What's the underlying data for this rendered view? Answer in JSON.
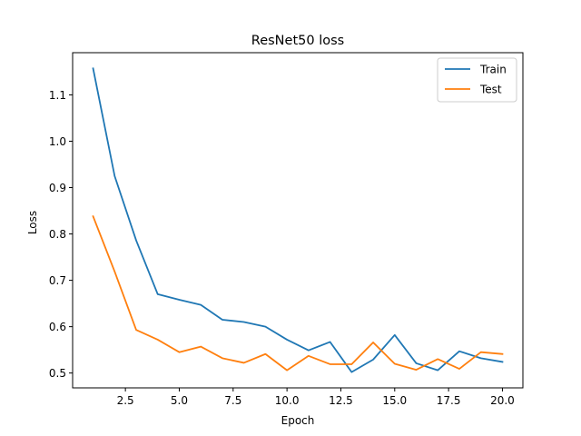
{
  "chart_data": {
    "type": "line",
    "title": "ResNet50 loss",
    "xlabel": "Epoch",
    "ylabel": "Loss",
    "xlim": [
      0.05,
      20.95
    ],
    "ylim": [
      0.468,
      1.191
    ],
    "xticks": [
      2.5,
      5.0,
      7.5,
      10.0,
      12.5,
      15.0,
      17.5,
      20.0
    ],
    "xtick_labels": [
      "2.5",
      "5.0",
      "7.5",
      "10.0",
      "12.5",
      "15.0",
      "17.5",
      "20.0"
    ],
    "yticks": [
      0.5,
      0.6,
      0.7,
      0.8,
      0.9,
      1.0,
      1.1
    ],
    "ytick_labels": [
      "0.5",
      "0.6",
      "0.7",
      "0.8",
      "0.9",
      "1.0",
      "1.1"
    ],
    "grid": false,
    "legend_position": "upper right",
    "x": [
      1,
      2,
      3,
      4,
      5,
      6,
      7,
      8,
      9,
      10,
      11,
      12,
      13,
      14,
      15,
      16,
      17,
      18,
      19,
      20
    ],
    "series": [
      {
        "name": "Train",
        "color": "#1f77b4",
        "values": [
          1.157,
          0.925,
          0.786,
          0.67,
          0.658,
          0.647,
          0.615,
          0.61,
          0.6,
          0.572,
          0.549,
          0.567,
          0.502,
          0.529,
          0.582,
          0.521,
          0.506,
          0.547,
          0.532,
          0.524
        ]
      },
      {
        "name": "Test",
        "color": "#ff7f0e",
        "values": [
          0.838,
          0.719,
          0.593,
          0.572,
          0.545,
          0.557,
          0.532,
          0.522,
          0.541,
          0.506,
          0.537,
          0.519,
          0.519,
          0.566,
          0.52,
          0.507,
          0.53,
          0.509,
          0.545,
          0.541
        ]
      }
    ]
  }
}
